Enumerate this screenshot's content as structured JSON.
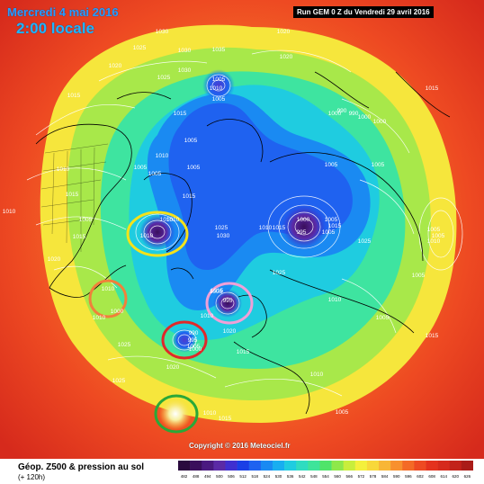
{
  "header": {
    "date": "Mercredi 4 mai 2016",
    "time": "2:00 locale",
    "run": "Run GEM 0 Z du Vendredi 29 avril 2016"
  },
  "footer": {
    "copyright": "Copyright © 2016 Meteociel.fr",
    "caption_title": "Géop. Z500 & pression au sol",
    "caption_sub": "(+ 120h)"
  },
  "legend": {
    "ticks": [
      "482",
      "488",
      "494",
      "500",
      "506",
      "512",
      "518",
      "524",
      "530",
      "536",
      "542",
      "548",
      "554",
      "560",
      "566",
      "572",
      "578",
      "584",
      "590",
      "596",
      "602",
      "608",
      "614",
      "620",
      "626"
    ],
    "colors": [
      "#2a0a3e",
      "#3a0f5c",
      "#4a1a80",
      "#5b2aa6",
      "#3f2fd0",
      "#1a3fe6",
      "#1f62f0",
      "#1a8af2",
      "#18aef0",
      "#1fcce0",
      "#2fdcc0",
      "#3ee49a",
      "#4fe46a",
      "#8ee84a",
      "#c8ee3c",
      "#f4f03c",
      "#f8d83a",
      "#f8b636",
      "#f8902e",
      "#f46a26",
      "#ee4a22",
      "#e4321e",
      "#d62a1c",
      "#c2221a",
      "#aa1c18"
    ]
  },
  "pressure_labels": [
    "1030",
    "1020",
    "1025",
    "1030",
    "1030",
    "1020",
    "1025",
    "1035",
    "1005",
    "1020",
    "1010",
    "1015",
    "1005",
    "1015",
    "1015",
    "1000",
    "1000",
    "990",
    "990",
    "1000",
    "1005",
    "1005",
    "1005",
    "1010",
    "1005",
    "1005",
    "1005",
    "1010",
    "1015",
    "1010",
    "1010",
    "1015",
    "1010",
    "1005",
    "1000",
    "1005",
    "1010",
    "1025",
    "1030",
    "1010",
    "1000",
    "995",
    "1005",
    "1015",
    "1025",
    "1010",
    "1015",
    "1020",
    "1020",
    "1025",
    "1005",
    "1005",
    "1010",
    "1010",
    "1005",
    "1015",
    "995",
    "990",
    "1015",
    "1005",
    "995",
    "1000",
    "1010",
    "1005",
    "1010",
    "1015",
    "1005",
    "1025",
    "1020",
    "1025",
    "1010",
    "1015",
    "1015",
    "1010",
    "1005"
  ],
  "map_features": {
    "circles": [
      {
        "name": "yellow-circle",
        "color": "#f4e21a"
      },
      {
        "name": "orange-circle",
        "color": "#f0803a"
      },
      {
        "name": "pink-circle",
        "color": "#f0a0d8"
      },
      {
        "name": "red-circle",
        "color": "#e0282a"
      },
      {
        "name": "green-circle",
        "color": "#2aa838"
      }
    ],
    "lows": [
      "low-alaska",
      "low-greenland",
      "low-iceland",
      "low-atlantic",
      "low-siberia"
    ]
  }
}
